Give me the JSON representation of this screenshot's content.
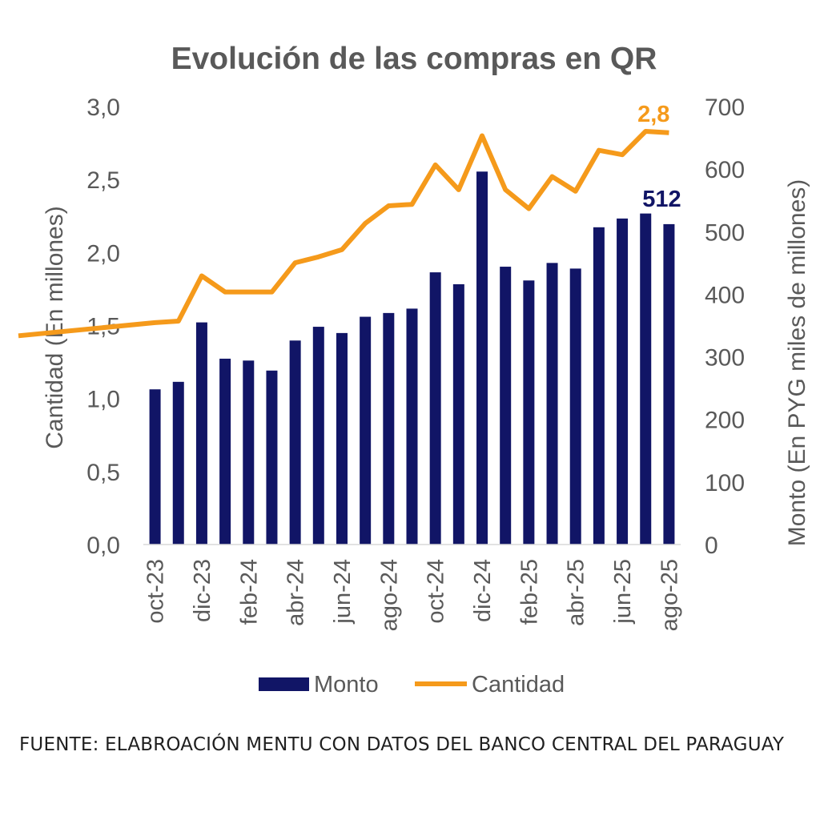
{
  "chart_data": {
    "type": "bar+line",
    "title": "Evolución de las compras en QR",
    "categories": [
      "oct-23",
      "nov-23",
      "dic-23",
      "ene-24",
      "feb-24",
      "mar-24",
      "abr-24",
      "may-24",
      "jun-24",
      "jul-24",
      "ago-24",
      "sep-24",
      "oct-24",
      "nov-24",
      "dic-24",
      "ene-25",
      "feb-25",
      "mar-25",
      "abr-25",
      "may-25",
      "jun-25",
      "jul-25",
      "ago-25"
    ],
    "x_tick_labels": [
      "oct-23",
      "",
      "dic-23",
      "",
      "feb-24",
      "",
      "abr-24",
      "",
      "jun-24",
      "",
      "ago-24",
      "",
      "oct-24",
      "",
      "dic-24",
      "",
      "feb-25",
      "",
      "abr-25",
      "",
      "jun-25",
      "",
      "ago-25"
    ],
    "series": [
      {
        "name": "Monto",
        "type": "bar",
        "axis": "right",
        "color": "#111566",
        "values": [
          248,
          260,
          355,
          297,
          294,
          278,
          326,
          348,
          338,
          364,
          370,
          377,
          435,
          416,
          596,
          444,
          422,
          450,
          441,
          507,
          521,
          529,
          512
        ]
      },
      {
        "name": "Cantidad",
        "type": "line",
        "axis": "left",
        "color": "#F59A1B",
        "x_start": 23,
        "start_value": 1.43,
        "values": [
          1.52,
          1.53,
          1.84,
          1.73,
          1.73,
          1.73,
          1.93,
          1.97,
          2.02,
          2.2,
          2.32,
          2.33,
          2.6,
          2.43,
          2.8,
          2.43,
          2.3,
          2.52,
          2.42,
          2.7,
          2.67,
          2.83,
          2.82
        ]
      }
    ],
    "left_axis": {
      "label": "Cantidad (En millones)",
      "min": 0,
      "max": 3,
      "ticks": [
        "0,0",
        "0,5",
        "1,0",
        "1,5",
        "2,0",
        "2,5",
        "3,0"
      ]
    },
    "right_axis": {
      "label": "Monto (En PYG miles de millones)",
      "min": 0,
      "max": 700,
      "ticks": [
        "0",
        "100",
        "200",
        "300",
        "400",
        "500",
        "600",
        "700"
      ]
    },
    "annotations": {
      "bar_last": "512",
      "line_last": "2,8"
    },
    "legend": {
      "position": "bottom",
      "items": [
        {
          "label": "Monto",
          "color": "#111566"
        },
        {
          "label": "Cantidad",
          "color": "#F59A1B"
        }
      ]
    },
    "grid": false
  },
  "source_note": "FUENTE: ELABROACIÓN MENTU CON DATOS DEL BANCO CENTRAL DEL PARAGUAY"
}
